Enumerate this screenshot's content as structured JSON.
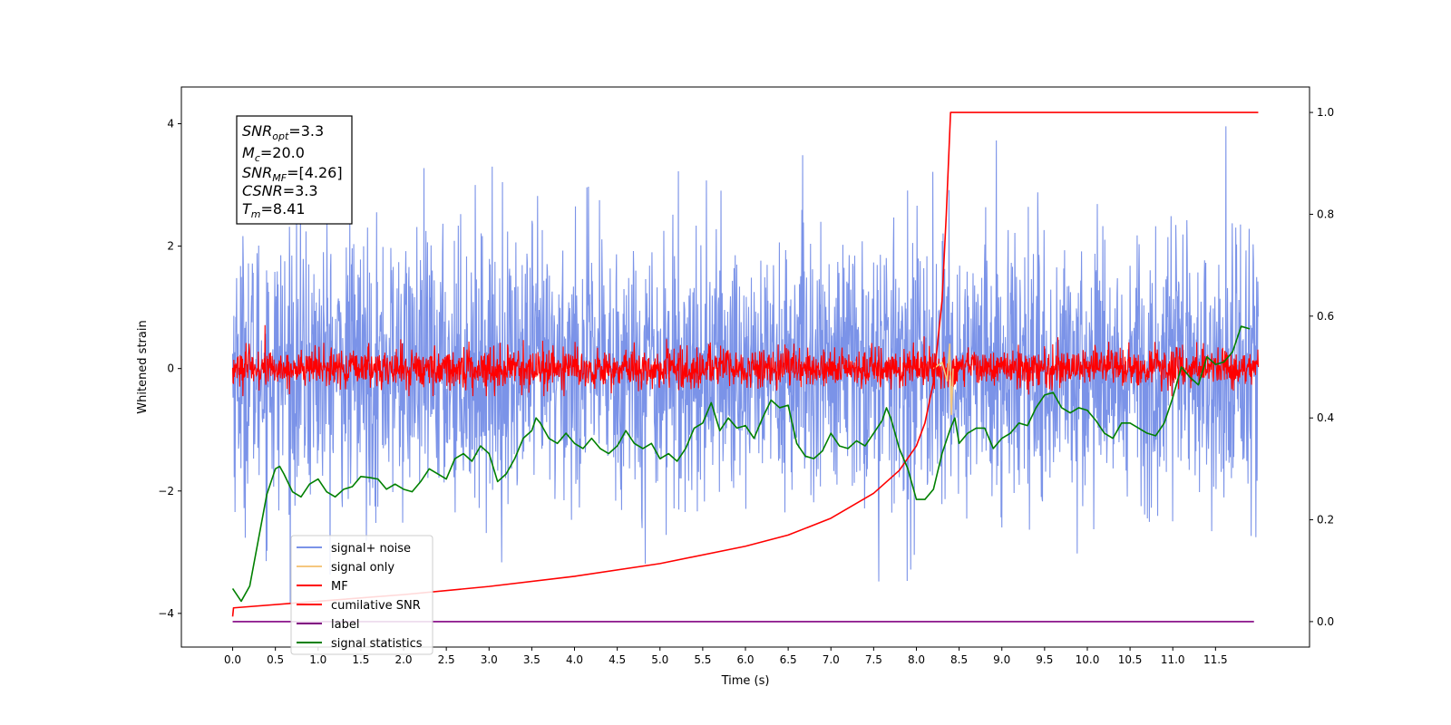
{
  "chart_data": {
    "type": "line",
    "xlabel": "Time (s)",
    "ylabel": "Whitened strain",
    "xlim": [
      -0.6,
      12.6
    ],
    "ylim": [
      -4.55,
      4.6
    ],
    "y2lim": [
      -0.05,
      1.05
    ],
    "x_ticks": [
      0.0,
      0.5,
      1.0,
      1.5,
      2.0,
      2.5,
      3.0,
      3.5,
      4.0,
      4.5,
      5.0,
      5.5,
      6.0,
      6.5,
      7.0,
      7.5,
      8.0,
      8.5,
      9.0,
      9.5,
      10.0,
      10.5,
      11.0,
      11.5
    ],
    "x_tick_labels": [
      "0.0",
      "0.5",
      "1.0",
      "1.5",
      "2.0",
      "2.5",
      "3.0",
      "3.5",
      "4.0",
      "4.5",
      "5.0",
      "5.5",
      "6.0",
      "6.5",
      "7.0",
      "7.5",
      "8.0",
      "8.5",
      "9.0",
      "9.5",
      "10.0",
      "10.5",
      "11.0",
      "11.5"
    ],
    "y_ticks": [
      -4,
      -2,
      0,
      2,
      4
    ],
    "y_tick_labels": [
      "−4",
      "−2",
      "0",
      "2",
      "4"
    ],
    "y2_ticks": [
      0.0,
      0.2,
      0.4,
      0.6,
      0.8,
      1.0
    ],
    "y2_tick_labels": [
      "0.0",
      "0.2",
      "0.4",
      "0.6",
      "0.8",
      "1.0"
    ],
    "legend_position": "lower-left",
    "info_box": {
      "snr_opt": {
        "main": "SNR",
        "sub": "opt",
        "value": "=3.3"
      },
      "mc": {
        "main": "M",
        "sub": "c",
        "value": "=20.0"
      },
      "snr_mf": {
        "main": "SNR",
        "sub": "MF",
        "value": "=[4.26]"
      },
      "csnr": {
        "main": "CSNR",
        "value": "=3.3"
      },
      "tm": {
        "main": "T",
        "sub": "m",
        "value": "=8.41"
      }
    },
    "series": [
      {
        "name": "signal+ noise",
        "color": "#7b93e8",
        "axis": "left",
        "kind": "noise",
        "t_range": [
          0.0,
          12.0
        ],
        "sigma": 1.1,
        "y_range": [
          -4.1,
          4.15
        ]
      },
      {
        "name": "signal only",
        "color": "#f5c77e",
        "axis": "left",
        "kind": "chirp",
        "points": [
          [
            8.2,
            0.0
          ],
          [
            8.3,
            0.1
          ],
          [
            8.36,
            -0.2
          ],
          [
            8.39,
            0.4
          ],
          [
            8.41,
            -0.75
          ],
          [
            8.43,
            0.0
          ]
        ]
      },
      {
        "name": "MF",
        "color": "#ff0000",
        "axis": "left",
        "kind": "noise",
        "t_range": [
          0.0,
          12.0
        ],
        "sigma": 0.16,
        "y_range": [
          -0.45,
          1.0
        ]
      },
      {
        "name": "cumilative SNR",
        "color": "#ff0000",
        "axis": "right",
        "points": [
          [
            0.0,
            0.01
          ],
          [
            0.01,
            0.027
          ],
          [
            1.0,
            0.04
          ],
          [
            2.0,
            0.053
          ],
          [
            3.0,
            0.069
          ],
          [
            4.0,
            0.089
          ],
          [
            5.0,
            0.114
          ],
          [
            6.0,
            0.148
          ],
          [
            6.5,
            0.17
          ],
          [
            7.0,
            0.203
          ],
          [
            7.5,
            0.252
          ],
          [
            7.8,
            0.297
          ],
          [
            8.0,
            0.345
          ],
          [
            8.1,
            0.39
          ],
          [
            8.2,
            0.47
          ],
          [
            8.3,
            0.63
          ],
          [
            8.35,
            0.8
          ],
          [
            8.38,
            0.92
          ],
          [
            8.4,
            1.0
          ],
          [
            12.0,
            1.0
          ]
        ]
      },
      {
        "name": "label",
        "color": "#800080",
        "axis": "right",
        "points": [
          [
            0.0,
            0.0
          ],
          [
            11.95,
            0.0
          ]
        ]
      },
      {
        "name": "signal statistics",
        "color": "#008000",
        "axis": "right",
        "points": [
          [
            0.0,
            0.065
          ],
          [
            0.1,
            0.04
          ],
          [
            0.2,
            0.07
          ],
          [
            0.3,
            0.16
          ],
          [
            0.4,
            0.25
          ],
          [
            0.5,
            0.3
          ],
          [
            0.55,
            0.305
          ],
          [
            0.6,
            0.29
          ],
          [
            0.7,
            0.255
          ],
          [
            0.8,
            0.245
          ],
          [
            0.9,
            0.27
          ],
          [
            1.0,
            0.28
          ],
          [
            1.1,
            0.255
          ],
          [
            1.2,
            0.245
          ],
          [
            1.3,
            0.26
          ],
          [
            1.4,
            0.265
          ],
          [
            1.5,
            0.285
          ],
          [
            1.6,
            0.283
          ],
          [
            1.7,
            0.28
          ],
          [
            1.8,
            0.26
          ],
          [
            1.9,
            0.27
          ],
          [
            2.0,
            0.26
          ],
          [
            2.1,
            0.255
          ],
          [
            2.2,
            0.275
          ],
          [
            2.3,
            0.3
          ],
          [
            2.4,
            0.29
          ],
          [
            2.5,
            0.28
          ],
          [
            2.6,
            0.32
          ],
          [
            2.7,
            0.33
          ],
          [
            2.8,
            0.315
          ],
          [
            2.9,
            0.345
          ],
          [
            3.0,
            0.33
          ],
          [
            3.1,
            0.275
          ],
          [
            3.2,
            0.29
          ],
          [
            3.3,
            0.32
          ],
          [
            3.4,
            0.36
          ],
          [
            3.5,
            0.375
          ],
          [
            3.55,
            0.4
          ],
          [
            3.6,
            0.39
          ],
          [
            3.7,
            0.36
          ],
          [
            3.8,
            0.35
          ],
          [
            3.9,
            0.37
          ],
          [
            4.0,
            0.35
          ],
          [
            4.1,
            0.34
          ],
          [
            4.2,
            0.36
          ],
          [
            4.3,
            0.34
          ],
          [
            4.4,
            0.33
          ],
          [
            4.5,
            0.345
          ],
          [
            4.6,
            0.375
          ],
          [
            4.7,
            0.35
          ],
          [
            4.8,
            0.34
          ],
          [
            4.9,
            0.35
          ],
          [
            5.0,
            0.32
          ],
          [
            5.1,
            0.33
          ],
          [
            5.2,
            0.315
          ],
          [
            5.3,
            0.34
          ],
          [
            5.4,
            0.38
          ],
          [
            5.5,
            0.39
          ],
          [
            5.6,
            0.43
          ],
          [
            5.7,
            0.375
          ],
          [
            5.8,
            0.4
          ],
          [
            5.9,
            0.38
          ],
          [
            6.0,
            0.385
          ],
          [
            6.1,
            0.36
          ],
          [
            6.2,
            0.4
          ],
          [
            6.3,
            0.435
          ],
          [
            6.4,
            0.42
          ],
          [
            6.5,
            0.425
          ],
          [
            6.6,
            0.35
          ],
          [
            6.7,
            0.325
          ],
          [
            6.8,
            0.32
          ],
          [
            6.9,
            0.335
          ],
          [
            7.0,
            0.37
          ],
          [
            7.1,
            0.345
          ],
          [
            7.2,
            0.34
          ],
          [
            7.3,
            0.355
          ],
          [
            7.4,
            0.345
          ],
          [
            7.5,
            0.37
          ],
          [
            7.6,
            0.395
          ],
          [
            7.65,
            0.42
          ],
          [
            7.7,
            0.4
          ],
          [
            7.8,
            0.34
          ],
          [
            7.9,
            0.3
          ],
          [
            8.0,
            0.24
          ],
          [
            8.1,
            0.24
          ],
          [
            8.2,
            0.26
          ],
          [
            8.3,
            0.33
          ],
          [
            8.4,
            0.38
          ],
          [
            8.45,
            0.4
          ],
          [
            8.5,
            0.35
          ],
          [
            8.6,
            0.37
          ],
          [
            8.7,
            0.38
          ],
          [
            8.8,
            0.38
          ],
          [
            8.9,
            0.34
          ],
          [
            9.0,
            0.36
          ],
          [
            9.1,
            0.37
          ],
          [
            9.2,
            0.39
          ],
          [
            9.3,
            0.385
          ],
          [
            9.4,
            0.42
          ],
          [
            9.5,
            0.445
          ],
          [
            9.6,
            0.45
          ],
          [
            9.7,
            0.42
          ],
          [
            9.8,
            0.41
          ],
          [
            9.9,
            0.42
          ],
          [
            10.0,
            0.415
          ],
          [
            10.1,
            0.395
          ],
          [
            10.2,
            0.37
          ],
          [
            10.3,
            0.36
          ],
          [
            10.4,
            0.39
          ],
          [
            10.5,
            0.39
          ],
          [
            10.6,
            0.38
          ],
          [
            10.7,
            0.37
          ],
          [
            10.8,
            0.365
          ],
          [
            10.9,
            0.39
          ],
          [
            11.0,
            0.44
          ],
          [
            11.1,
            0.5
          ],
          [
            11.2,
            0.48
          ],
          [
            11.3,
            0.465
          ],
          [
            11.4,
            0.52
          ],
          [
            11.5,
            0.505
          ],
          [
            11.6,
            0.51
          ],
          [
            11.7,
            0.53
          ],
          [
            11.8,
            0.58
          ],
          [
            11.9,
            0.575
          ]
        ]
      }
    ]
  }
}
